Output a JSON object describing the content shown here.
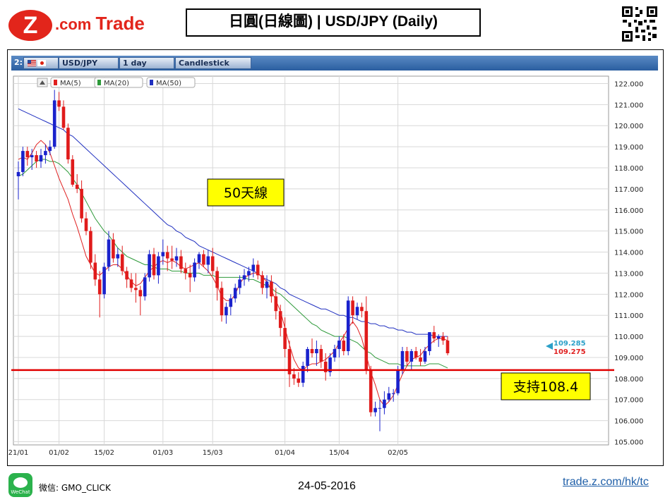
{
  "header": {
    "logo_text": "Trade",
    "logo_mark": "Z.com",
    "title": "日圓(日線圖) | USD/JPY  (Daily)",
    "qr_icon": "qr-code-icon"
  },
  "toolbar": {
    "chart_index": "2:",
    "symbol": "USD/JPY",
    "timeframe": "1 day",
    "chart_type": "Candlestick"
  },
  "legend": [
    {
      "label": "MA(5)",
      "color": "#e02020"
    },
    {
      "label": "MA(20)",
      "color": "#2e9a3a"
    },
    {
      "label": "MA(50)",
      "color": "#2030c0"
    }
  ],
  "annotations": {
    "ma50_label": "50天線",
    "support_label": "支持108.4",
    "support_value": 108.4,
    "price_upper": "109.285",
    "price_lower": "109.275"
  },
  "chart_data": {
    "type": "candlestick",
    "ylim": [
      104.85,
      122.35
    ],
    "y_ticks": [
      "122.000",
      "121.000",
      "120.000",
      "119.000",
      "118.000",
      "117.000",
      "116.000",
      "115.000",
      "114.000",
      "113.000",
      "112.000",
      "111.000",
      "110.000",
      "109.000",
      "108.000",
      "107.000",
      "106.000",
      "105.000"
    ],
    "x_ticks": [
      {
        "label": "21/01",
        "index": 0
      },
      {
        "label": "01/02",
        "index": 9
      },
      {
        "label": "15/02",
        "index": 19
      },
      {
        "label": "01/03",
        "index": 32
      },
      {
        "label": "15/03",
        "index": 43
      },
      {
        "label": "01/04",
        "index": 59
      },
      {
        "label": "15/04",
        "index": 71
      },
      {
        "label": "02/05",
        "index": 84
      }
    ],
    "colors": {
      "up": "#1a22cc",
      "down": "#e01b1b",
      "support": "#e00000",
      "grid": "#d8d8d8"
    },
    "candles": [
      [
        117.6,
        118.3,
        116.5,
        117.8
      ],
      [
        117.8,
        119.0,
        117.6,
        118.8
      ],
      [
        118.8,
        119.0,
        118.1,
        118.5
      ],
      [
        118.5,
        118.9,
        117.9,
        118.6
      ],
      [
        118.6,
        118.8,
        118.0,
        118.3
      ],
      [
        118.3,
        118.9,
        118.0,
        118.6
      ],
      [
        118.6,
        119.1,
        118.2,
        118.8
      ],
      [
        118.8,
        119.3,
        118.6,
        119.0
      ],
      [
        119.0,
        121.7,
        118.9,
        121.2
      ],
      [
        121.2,
        121.6,
        120.7,
        120.9
      ],
      [
        120.9,
        121.2,
        119.8,
        119.9
      ],
      [
        119.9,
        120.1,
        118.2,
        118.4
      ],
      [
        118.4,
        118.6,
        117.1,
        117.2
      ],
      [
        117.2,
        117.7,
        116.8,
        117.0
      ],
      [
        117.0,
        117.4,
        115.4,
        115.6
      ],
      [
        115.6,
        115.9,
        114.8,
        115.0
      ],
      [
        115.0,
        115.2,
        113.2,
        113.5
      ],
      [
        113.5,
        113.9,
        112.4,
        112.7
      ],
      [
        112.7,
        113.1,
        110.9,
        112.0
      ],
      [
        112.0,
        113.5,
        111.8,
        113.3
      ],
      [
        113.3,
        115.0,
        113.1,
        114.6
      ],
      [
        114.6,
        114.9,
        113.5,
        113.7
      ],
      [
        113.7,
        114.2,
        113.3,
        113.9
      ],
      [
        113.9,
        114.3,
        112.9,
        113.1
      ],
      [
        113.1,
        113.3,
        112.3,
        112.7
      ],
      [
        112.7,
        113.0,
        112.1,
        112.3
      ],
      [
        112.3,
        113.0,
        111.6,
        112.2
      ],
      [
        112.2,
        112.4,
        111.0,
        111.9
      ],
      [
        111.9,
        113.0,
        111.7,
        112.8
      ],
      [
        112.8,
        114.1,
        112.6,
        113.9
      ],
      [
        113.9,
        114.2,
        112.7,
        112.9
      ],
      [
        112.9,
        114.0,
        112.5,
        113.8
      ],
      [
        113.8,
        114.6,
        113.4,
        114.0
      ],
      [
        114.0,
        114.3,
        113.1,
        113.7
      ],
      [
        113.7,
        114.3,
        113.2,
        113.6
      ],
      [
        113.6,
        114.2,
        113.3,
        113.8
      ],
      [
        113.8,
        114.1,
        113.0,
        113.2
      ],
      [
        113.2,
        113.5,
        112.7,
        113.0
      ],
      [
        113.0,
        113.4,
        112.1,
        112.8
      ],
      [
        112.8,
        113.7,
        112.6,
        113.5
      ],
      [
        113.5,
        114.0,
        113.2,
        113.9
      ],
      [
        113.9,
        114.1,
        113.3,
        113.4
      ],
      [
        113.4,
        114.1,
        113.0,
        113.8
      ],
      [
        113.8,
        114.2,
        112.9,
        113.1
      ],
      [
        113.1,
        113.3,
        111.7,
        112.3
      ],
      [
        112.3,
        112.6,
        110.7,
        111.0
      ],
      [
        111.0,
        111.6,
        110.6,
        111.4
      ],
      [
        111.4,
        112.0,
        111.0,
        111.8
      ],
      [
        111.8,
        112.5,
        111.6,
        112.3
      ],
      [
        112.3,
        112.9,
        112.0,
        112.7
      ],
      [
        112.7,
        113.2,
        112.4,
        112.9
      ],
      [
        112.9,
        113.3,
        112.6,
        113.1
      ],
      [
        113.1,
        113.7,
        112.8,
        113.4
      ],
      [
        113.4,
        113.6,
        112.7,
        112.9
      ],
      [
        112.9,
        113.1,
        112.0,
        112.3
      ],
      [
        112.3,
        112.9,
        111.8,
        112.6
      ],
      [
        112.6,
        112.9,
        111.6,
        111.9
      ],
      [
        111.9,
        112.3,
        110.8,
        111.2
      ],
      [
        111.2,
        111.5,
        110.0,
        110.4
      ],
      [
        110.4,
        110.9,
        109.0,
        109.4
      ],
      [
        109.4,
        109.8,
        107.6,
        108.2
      ],
      [
        108.2,
        108.5,
        107.7,
        108.0
      ],
      [
        108.0,
        108.3,
        107.6,
        107.8
      ],
      [
        107.8,
        108.8,
        107.6,
        108.6
      ],
      [
        108.6,
        109.5,
        108.3,
        109.4
      ],
      [
        109.4,
        109.9,
        109.0,
        109.2
      ],
      [
        109.2,
        109.8,
        108.6,
        109.4
      ],
      [
        109.4,
        109.6,
        108.5,
        108.8
      ],
      [
        108.8,
        109.2,
        107.9,
        108.3
      ],
      [
        108.3,
        109.2,
        108.1,
        109.0
      ],
      [
        109.0,
        109.6,
        108.8,
        109.4
      ],
      [
        109.4,
        110.0,
        109.0,
        109.8
      ],
      [
        109.8,
        110.1,
        109.1,
        109.3
      ],
      [
        109.3,
        111.9,
        109.1,
        111.7
      ],
      [
        111.7,
        111.9,
        110.6,
        111.0
      ],
      [
        111.0,
        111.6,
        110.8,
        111.4
      ],
      [
        111.4,
        111.6,
        110.9,
        111.2
      ],
      [
        111.2,
        111.9,
        108.2,
        108.4
      ],
      [
        108.4,
        108.6,
        106.2,
        106.4
      ],
      [
        106.4,
        106.9,
        106.2,
        106.6
      ],
      [
        106.6,
        107.0,
        105.5,
        106.6
      ],
      [
        106.6,
        107.4,
        106.3,
        107.0
      ],
      [
        107.0,
        107.6,
        106.9,
        107.3
      ],
      [
        107.3,
        107.5,
        106.9,
        107.3
      ],
      [
        107.3,
        108.6,
        107.2,
        108.4
      ],
      [
        108.4,
        109.5,
        108.2,
        109.3
      ],
      [
        109.3,
        109.5,
        108.6,
        108.8
      ],
      [
        108.8,
        109.4,
        108.4,
        109.3
      ],
      [
        109.3,
        109.5,
        108.9,
        109.0
      ],
      [
        109.0,
        109.4,
        108.6,
        108.8
      ],
      [
        108.8,
        109.5,
        108.7,
        109.3
      ],
      [
        109.3,
        110.2,
        109.1,
        110.2
      ],
      [
        110.2,
        110.5,
        109.7,
        109.9
      ],
      [
        109.9,
        110.1,
        109.5,
        110.0
      ],
      [
        110.0,
        110.2,
        109.6,
        109.8
      ],
      [
        109.8,
        110.0,
        109.1,
        109.2
      ]
    ],
    "ma5": [
      118.4,
      118.5,
      118.4,
      118.7,
      119.1,
      119.3,
      119.1,
      118.7,
      118.1,
      117.5,
      117.0,
      116.5,
      115.8,
      115.2,
      114.5,
      113.8,
      113.4,
      113.0,
      112.9,
      113.1,
      113.3,
      113.4,
      113.4,
      113.2,
      112.9,
      112.6,
      112.4,
      112.5,
      112.8,
      113.1,
      113.3,
      113.5,
      113.6,
      113.5,
      113.6,
      113.5,
      113.3,
      113.2,
      113.3,
      113.4,
      113.5,
      113.3,
      113.1,
      112.8,
      112.4,
      111.9,
      111.7,
      111.7,
      112.0,
      112.5,
      112.8,
      112.9,
      113.0,
      113.0,
      112.8,
      112.6,
      112.2,
      111.7,
      111.2,
      110.4,
      109.6,
      108.9,
      108.5,
      108.4,
      108.6,
      108.7,
      108.7,
      108.8,
      108.9,
      109.1,
      109.3,
      109.7,
      110.0,
      110.4,
      110.7,
      110.4,
      109.9,
      109.1,
      108.3,
      107.7,
      107.0,
      106.7,
      106.9,
      107.2,
      107.7,
      108.2,
      108.6,
      108.9,
      109.0,
      109.1,
      109.4,
      109.6,
      109.8,
      109.9,
      109.9,
      109.8
    ],
    "ma20": [
      117.6,
      117.7,
      117.9,
      118.1,
      118.3,
      118.4,
      118.4,
      118.3,
      118.3,
      118.2,
      118.0,
      117.8,
      117.5,
      117.2,
      116.8,
      116.4,
      116.0,
      115.6,
      115.3,
      115.0,
      114.8,
      114.5,
      114.2,
      114.0,
      113.8,
      113.7,
      113.6,
      113.5,
      113.4,
      113.4,
      113.3,
      113.2,
      113.2,
      113.2,
      113.1,
      113.1,
      113.1,
      113.0,
      113.0,
      113.0,
      113.0,
      112.9,
      112.9,
      112.9,
      112.8,
      112.8,
      112.8,
      112.8,
      112.8,
      112.8,
      112.8,
      112.7,
      112.7,
      112.6,
      112.5,
      112.4,
      112.3,
      112.1,
      112.0,
      111.8,
      111.6,
      111.4,
      111.2,
      111.0,
      110.8,
      110.6,
      110.5,
      110.3,
      110.2,
      110.1,
      110.0,
      110.0,
      110.0,
      109.9,
      109.8,
      109.7,
      109.5,
      109.3,
      109.2,
      109.0,
      108.9,
      108.8,
      108.7,
      108.7,
      108.7,
      108.6,
      108.6,
      108.6,
      108.6,
      108.6,
      108.6,
      108.7,
      108.7,
      108.7,
      108.6,
      108.5
    ],
    "ma50": [
      120.8,
      120.7,
      120.6,
      120.5,
      120.4,
      120.3,
      120.2,
      120.1,
      120.0,
      119.9,
      119.8,
      119.6,
      119.5,
      119.3,
      119.1,
      118.9,
      118.7,
      118.5,
      118.3,
      118.1,
      117.9,
      117.7,
      117.5,
      117.3,
      117.1,
      116.9,
      116.7,
      116.5,
      116.3,
      116.1,
      115.9,
      115.7,
      115.5,
      115.3,
      115.2,
      115.0,
      114.9,
      114.7,
      114.6,
      114.5,
      114.3,
      114.2,
      114.1,
      114.0,
      113.9,
      113.8,
      113.7,
      113.6,
      113.5,
      113.4,
      113.3,
      113.2,
      113.1,
      113.0,
      112.8,
      112.7,
      112.6,
      112.5,
      112.3,
      112.2,
      112.0,
      111.9,
      111.8,
      111.7,
      111.6,
      111.5,
      111.4,
      111.3,
      111.3,
      111.2,
      111.1,
      111.0,
      111.0,
      110.9,
      110.9,
      110.8,
      110.7,
      110.7,
      110.6,
      110.6,
      110.5,
      110.5,
      110.4,
      110.4,
      110.3,
      110.3,
      110.2,
      110.2,
      110.1,
      110.1,
      110.1,
      110.1,
      110.0,
      110.0,
      110.0,
      110.0
    ]
  },
  "footer": {
    "wechat_label": "WeChat",
    "wechat_text": "微信: GMO_CLICK",
    "date": "24-05-2016",
    "url": "trade.z.com/hk/tc"
  }
}
